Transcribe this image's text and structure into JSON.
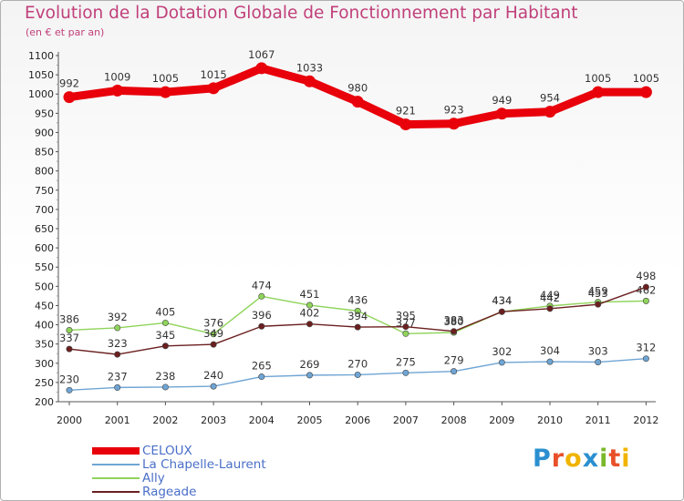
{
  "title": "Evolution de la Dotation Globale de Fonctionnement par Habitant",
  "subtitle": "(en € et par an)",
  "logo": {
    "text": "Proxiti",
    "colors": [
      "#2a8fd0",
      "#e8502a",
      "#f0b400",
      "#2a8fd0",
      "#7ab82a",
      "#e8502a",
      "#f0b400"
    ]
  },
  "chart_data": {
    "type": "line",
    "x": [
      "2000",
      "2001",
      "2002",
      "2003",
      "2004",
      "2005",
      "2006",
      "2007",
      "2008",
      "2009",
      "2010",
      "2011",
      "2012"
    ],
    "ylim": [
      200,
      1100
    ],
    "yticks": [
      200,
      250,
      300,
      350,
      400,
      450,
      500,
      550,
      600,
      650,
      700,
      750,
      800,
      850,
      900,
      950,
      1000,
      1050,
      1100
    ],
    "grid": false,
    "legend_position": "bottom-left",
    "series": [
      {
        "name": "CELOUX",
        "color": "#e8000b",
        "values": [
          992,
          1009,
          1005,
          1015,
          1067,
          1033,
          980,
          921,
          923,
          949,
          954,
          1005,
          1005
        ]
      },
      {
        "name": "La Chapelle-Laurent",
        "color": "#6fa5d4",
        "values": [
          230,
          237,
          238,
          240,
          265,
          269,
          270,
          275,
          279,
          302,
          304,
          303,
          312
        ]
      },
      {
        "name": "Ally",
        "color": "#8fd45a",
        "values": [
          386,
          392,
          405,
          376,
          474,
          451,
          436,
          377,
          380,
          434,
          449,
          459,
          462
        ]
      },
      {
        "name": "Rageade",
        "color": "#6b1f1f",
        "values": [
          337,
          323,
          345,
          349,
          396,
          402,
          394,
          395,
          383,
          434,
          442,
          453,
          498
        ]
      }
    ]
  }
}
